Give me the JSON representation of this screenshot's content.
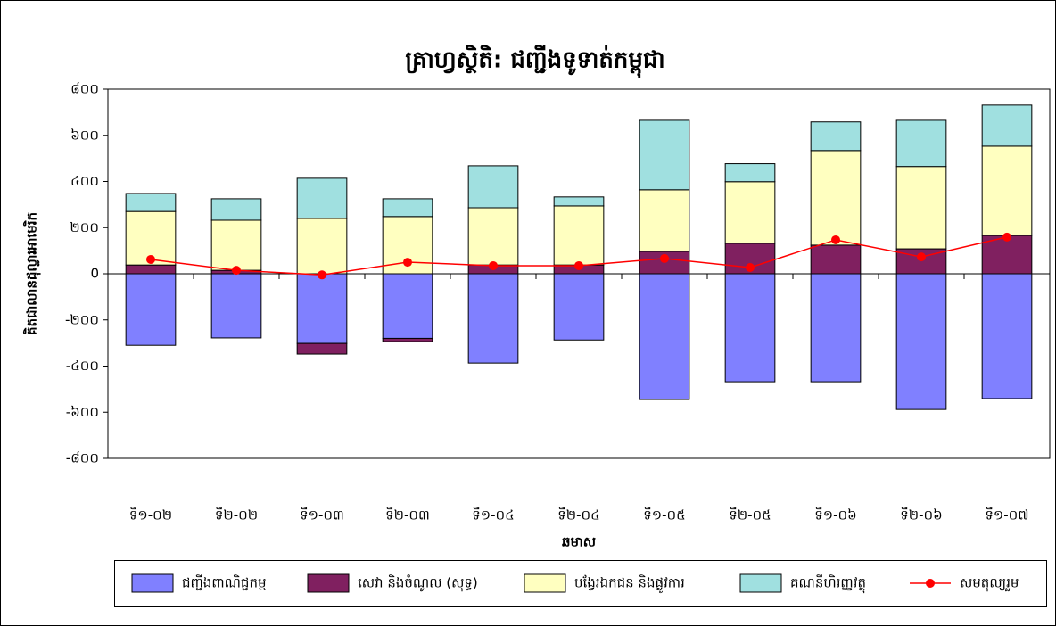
{
  "chart_data": {
    "type": "bar",
    "title": "គ្រាហ្វស្ថិតិ: ជញ្ជីងទូទាត់កម្ពុជា",
    "y_label": "គិតជាលានដុល្លារអាមេរិក",
    "x_label": "ឆមាស",
    "stacked": true,
    "categories": [
      "ទី១-០២",
      "ទី២-០២",
      "ទី១-០៣",
      "ទី២-០៣",
      "ទី១-០៤",
      "ទី២-០៤",
      "ទី១-០៥",
      "ទី២-០៥",
      "ទី១-០៦",
      "ទី២-០៦",
      "ទី១-០៧"
    ],
    "series": [
      {
        "name": "ជញ្ជីងពាណិជ្ជកម្ម",
        "color": "#8080ff",
        "values": [
          -310,
          -278,
          -302,
          -280,
          -387,
          -287,
          -545,
          -468,
          -468,
          -588,
          -541
        ]
      },
      {
        "name": "សេវា និងចំណូល (សុទ្ធ)",
        "color": "#802060",
        "values": [
          38,
          15,
          -46,
          -14,
          38,
          38,
          97,
          132,
          124,
          108,
          166
        ]
      },
      {
        "name": "បង្វែរឯកជន និងផ្លូវការ",
        "color": "#ffffc0",
        "values": [
          232,
          217,
          240,
          248,
          248,
          256,
          267,
          267,
          410,
          357,
          387
        ]
      },
      {
        "name": "គណនីហិរញ្ញវត្ថុ",
        "color": "#a0e0e0",
        "values": [
          78,
          93,
          174,
          77,
          182,
          39,
          301,
          78,
          124,
          200,
          178
        ]
      },
      {
        "name": "សមតុល្យរួម",
        "color": "#ff0000",
        "type": "line",
        "values": [
          62,
          15,
          -5,
          50,
          35,
          35,
          66,
          27,
          147,
          73,
          159
        ]
      }
    ],
    "ylim": [
      -800,
      800
    ],
    "yticks": [
      {
        "value": -800,
        "label": "-៨០០"
      },
      {
        "value": -600,
        "label": "-៦០០"
      },
      {
        "value": -400,
        "label": "-៤០០"
      },
      {
        "value": -200,
        "label": "-២០០"
      },
      0,
      {
        "value": 200,
        "label": "២០០"
      },
      {
        "value": 400,
        "label": "៤០០"
      },
      {
        "value": 600,
        "label": "៦០០"
      },
      {
        "value": 800,
        "label": "៨០០"
      }
    ],
    "legend": "bottom"
  }
}
